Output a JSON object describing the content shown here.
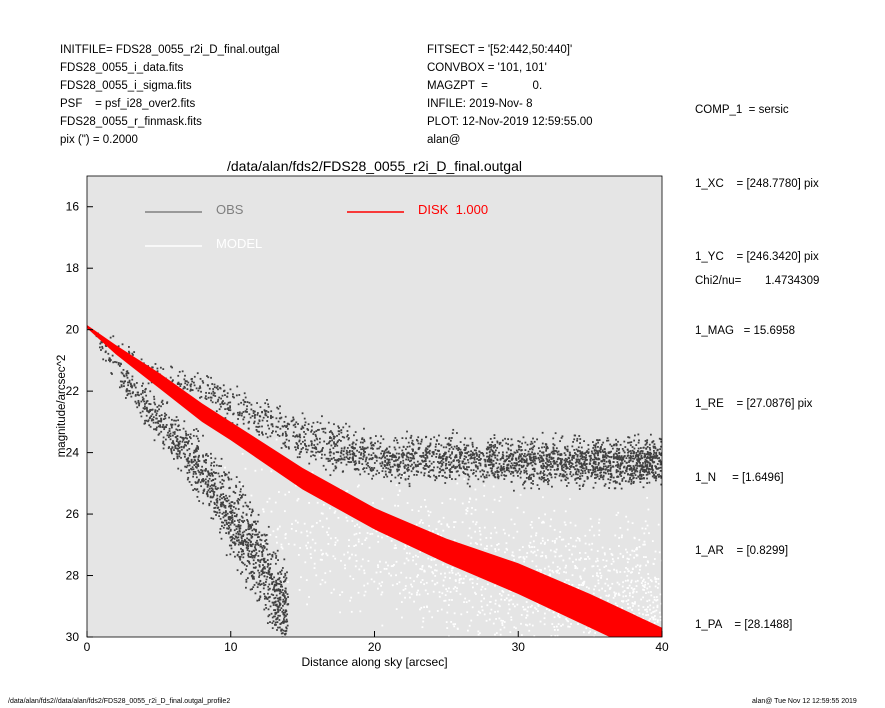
{
  "header_left": [
    "INITFILE= FDS28_0055_r2i_D_final.outgal",
    "FDS28_0055_i_data.fits",
    "FDS28_0055_i_sigma.fits",
    "PSF    = psf_i28_over2.fits",
    "FDS28_0055_r_finmask.fits",
    "pix (\") =  0.2000"
  ],
  "header_mid": [
    "FITSECT = '[52:442,50:440]'",
    "CONVBOX = '101, 101'",
    "MAGZPT  =              0.",
    "INFILE: 2019-Nov- 8",
    "PLOT: 12-Nov-2019 12:59:55.00",
    "alan@"
  ],
  "params": [
    "COMP_1  = sersic",
    "1_XC    = [248.7780] pix",
    "1_YC    = [246.3420] pix",
    "1_MAG   = 15.6958",
    "1_RE    = [27.0876] pix",
    "1_N     = [1.6496]",
    "1_AR    = [0.8299]",
    "1_PA    = [28.1488]"
  ],
  "chi2_label": "Chi2/nu=",
  "chi2_value": "1.4734309",
  "footer_left": "/data/alan/fds2//data/alan/fds2/FDS28_0055_r2i_D_final.outgal_profile2",
  "footer_right": "alan@  Tue Nov 12 12:59:55 2019",
  "chart_data": {
    "type": "scatter",
    "title": "/data/alan/fds2/FDS28_0055_r2i_D_final.outgal",
    "xlabel": "Distance along sky [arcsec]",
    "ylabel": "magnitude/arcsec^2",
    "xlim": [
      0,
      40
    ],
    "ylim": [
      30,
      15
    ],
    "xticks": [
      0,
      10,
      20,
      30,
      40
    ],
    "yticks": [
      16,
      18,
      20,
      22,
      24,
      26,
      28,
      30
    ],
    "legend": [
      {
        "name": "OBS",
        "color": "#808080"
      },
      {
        "name": "DISK  1.000",
        "color": "#ff0000"
      },
      {
        "name": "MODEL",
        "color": "#ffffff"
      }
    ],
    "series": [
      {
        "name": "OBS upper branch",
        "color": "#404040",
        "x": [
          0,
          2,
          5,
          8,
          10,
          13,
          16,
          20,
          30,
          40
        ],
        "y": [
          19.9,
          20.6,
          21.5,
          21.9,
          22.4,
          23.1,
          23.7,
          24.2,
          24.3,
          24.3
        ],
        "spread": [
          0.1,
          0.2,
          0.3,
          0.35,
          0.4,
          0.45,
          0.5,
          0.5,
          0.5,
          0.5
        ]
      },
      {
        "name": "OBS lower branch",
        "color": "#404040",
        "x": [
          0,
          2,
          5,
          8,
          10,
          12,
          14
        ],
        "y": [
          19.9,
          21.2,
          23.0,
          24.6,
          26.0,
          27.5,
          29.5
        ],
        "spread": [
          0.1,
          0.3,
          0.5,
          0.7,
          0.9,
          1.0,
          1.0
        ]
      },
      {
        "name": "MODEL",
        "color": "#ffffff",
        "x": [
          8,
          10,
          15,
          20,
          30,
          40
        ],
        "y": [
          24.5,
          25.2,
          26.5,
          27.3,
          28.2,
          28.8
        ],
        "spread": [
          0.8,
          1.2,
          1.5,
          1.6,
          1.7,
          1.8
        ]
      },
      {
        "name": "DISK 1.000",
        "color": "#ff0000",
        "x": [
          0,
          2,
          5,
          8,
          10,
          15,
          20,
          25,
          30,
          35,
          40
        ],
        "y_top": [
          19.85,
          20.5,
          21.4,
          22.4,
          23.0,
          24.5,
          25.8,
          26.8,
          27.6,
          28.6,
          29.7
        ],
        "y_bottom": [
          19.95,
          20.8,
          21.9,
          23.0,
          23.6,
          25.2,
          26.5,
          27.6,
          28.6,
          29.7,
          30.8
        ]
      }
    ]
  }
}
